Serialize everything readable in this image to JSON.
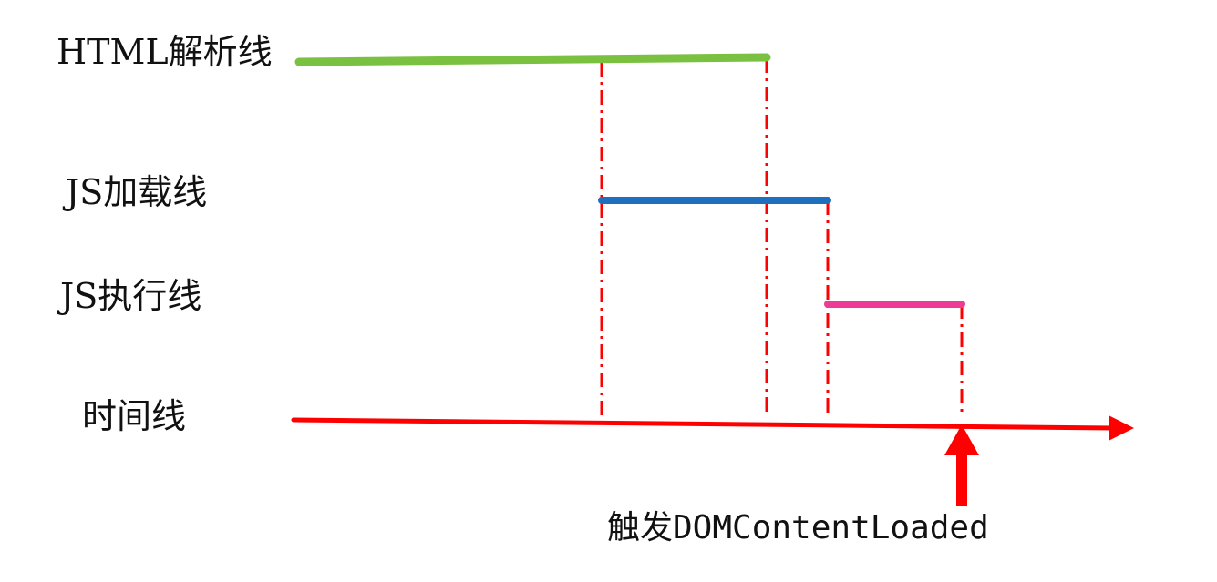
{
  "labels": {
    "html_parse": "HTML解析线",
    "js_load": "JS加载线",
    "js_exec": "JS执行线",
    "timeline": "时间线",
    "trigger": "触发DOMContentLoaded"
  },
  "colors": {
    "html_parse": "#7ac142",
    "js_load": "#1f6fbf",
    "js_exec": "#ee3c96",
    "timeline": "#ff0000",
    "guides": "#ff0000"
  }
}
